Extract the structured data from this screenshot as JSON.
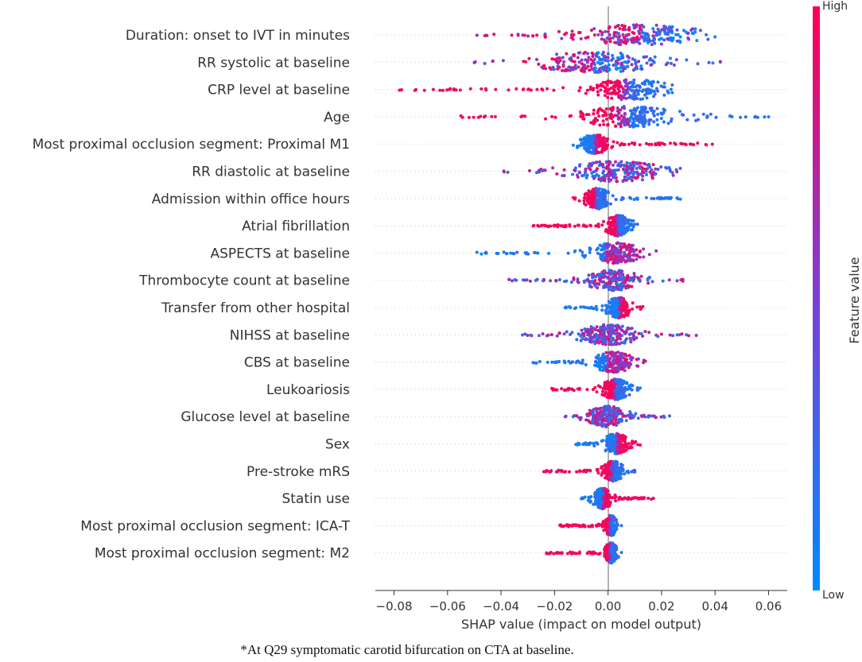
{
  "chart_data": {
    "type": "scatter",
    "subtype": "shap-beeswarm",
    "xlabel": "SHAP value (impact on model output)",
    "xlim": [
      -0.087,
      0.067
    ],
    "xticks": [
      -0.08,
      -0.06,
      -0.04,
      -0.02,
      0.0,
      0.02,
      0.04,
      0.06
    ],
    "xtick_labels": [
      "−0.08",
      "−0.06",
      "−0.04",
      "−0.02",
      "0.00",
      "0.02",
      "0.04",
      "0.06"
    ],
    "colorbar": {
      "title": "Feature value",
      "high_label": "High",
      "low_label": "Low",
      "high_color": "#ff0052",
      "low_color": "#008bfb"
    },
    "caption": "*At Q29 symptomatic carotid bifurcation on CTA at baseline.",
    "features": [
      {
        "name": "Duration: onset to IVT in minutes",
        "min": -0.049,
        "max": 0.04,
        "peak": 0.012,
        "spread": 0.018,
        "sep": "mixed"
      },
      {
        "name": "RR systolic at baseline",
        "min": -0.05,
        "max": 0.042,
        "peak": -0.005,
        "spread": 0.018,
        "sep": "mixed"
      },
      {
        "name": "CRP level at baseline",
        "min": -0.078,
        "max": 0.024,
        "peak": 0.008,
        "spread": 0.012,
        "sep": "high_left"
      },
      {
        "name": "Age",
        "min": -0.055,
        "max": 0.06,
        "peak": 0.008,
        "spread": 0.016,
        "sep": "high_left"
      },
      {
        "name": "Most proximal occlusion segment: Proximal M1",
        "min": -0.013,
        "max": 0.039,
        "peak": -0.005,
        "spread": 0.004,
        "sep": "high_right"
      },
      {
        "name": "RR diastolic at baseline",
        "min": -0.039,
        "max": 0.027,
        "peak": 0.003,
        "spread": 0.014,
        "sep": "mixed"
      },
      {
        "name": "Admission within office hours",
        "min": -0.013,
        "max": 0.027,
        "peak": -0.004,
        "spread": 0.004,
        "sep": "high_left"
      },
      {
        "name": "Atrial fibrillation",
        "min": -0.028,
        "max": 0.011,
        "peak": 0.004,
        "spread": 0.004,
        "sep": "high_left"
      },
      {
        "name": "ASPECTS at baseline",
        "min": -0.049,
        "max": 0.018,
        "peak": 0.003,
        "spread": 0.008,
        "sep": "low_left"
      },
      {
        "name": "Thrombocyte count at baseline",
        "min": -0.037,
        "max": 0.028,
        "peak": 0.002,
        "spread": 0.008,
        "sep": "mixed"
      },
      {
        "name": "Transfer from other hospital",
        "min": -0.016,
        "max": 0.013,
        "peak": 0.004,
        "spread": 0.004,
        "sep": "high_right"
      },
      {
        "name": "NIHSS at baseline",
        "min": -0.032,
        "max": 0.033,
        "peak": 0.0,
        "spread": 0.009,
        "sep": "mixed"
      },
      {
        "name": "CBS at baseline",
        "min": -0.028,
        "max": 0.014,
        "peak": 0.002,
        "spread": 0.006,
        "sep": "low_left"
      },
      {
        "name": "Leukoariosis",
        "min": -0.021,
        "max": 0.012,
        "peak": 0.003,
        "spread": 0.004,
        "sep": "high_left"
      },
      {
        "name": "Glucose level at baseline",
        "min": -0.016,
        "max": 0.023,
        "peak": 0.0,
        "spread": 0.006,
        "sep": "mixed"
      },
      {
        "name": "Sex",
        "min": -0.012,
        "max": 0.012,
        "peak": 0.003,
        "spread": 0.004,
        "sep": "high_right"
      },
      {
        "name": "Pre-stroke mRS",
        "min": -0.024,
        "max": 0.01,
        "peak": 0.002,
        "spread": 0.003,
        "sep": "high_left"
      },
      {
        "name": "Statin use",
        "min": -0.01,
        "max": 0.017,
        "peak": -0.002,
        "spread": 0.003,
        "sep": "high_right"
      },
      {
        "name": "Most proximal occlusion segment: ICA-T",
        "min": -0.018,
        "max": 0.005,
        "peak": 0.001,
        "spread": 0.002,
        "sep": "high_left"
      },
      {
        "name": "Most proximal occlusion segment: M2",
        "min": -0.023,
        "max": 0.005,
        "peak": 0.001,
        "spread": 0.002,
        "sep": "high_left"
      }
    ]
  }
}
